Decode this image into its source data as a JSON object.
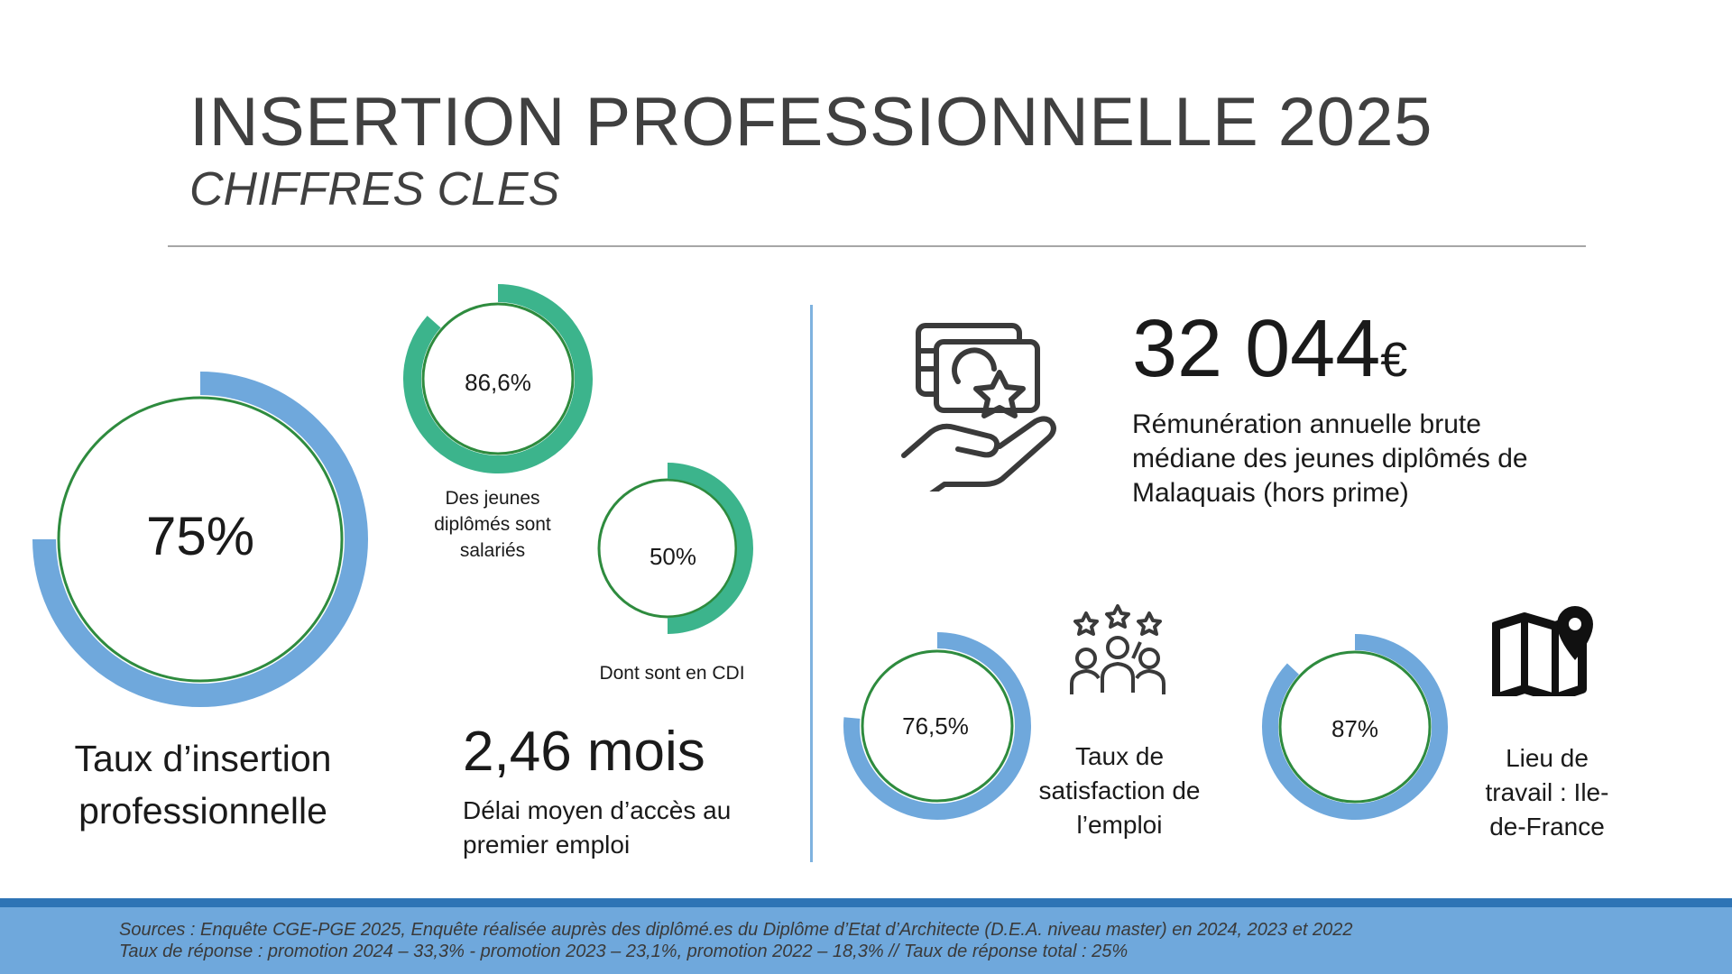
{
  "header": {
    "title": "INSERTION PROFESSIONNELLE 2025",
    "subtitle": "CHIFFRES CLES"
  },
  "colors": {
    "blue_ring": "#6fa8dc",
    "green_ring": "#3cb48c",
    "inner_ring": "#2e8b3e",
    "footer": "#6fa8dc",
    "footer_dark": "#2e74b5"
  },
  "left": {
    "insertion": {
      "value": "75%",
      "percent": 75,
      "label_line1": "Taux d’insertion",
      "label_line2": "professionnelle"
    },
    "salaries": {
      "value": "86,6%",
      "percent": 86.6,
      "label_line1": "Des jeunes",
      "label_line2": "diplômés sont",
      "label_line3": "salariés"
    },
    "cdi": {
      "value": "50%",
      "percent": 50,
      "label": "Dont sont en CDI"
    },
    "delai": {
      "value": "2,46 mois",
      "label_line1": "Délai moyen d’accès au",
      "label_line2": "premier emploi"
    }
  },
  "right": {
    "salary": {
      "value": "32 044",
      "currency": "€",
      "icon": "money-hand-star-icon",
      "label_line1": "Rémunération annuelle brute",
      "label_line2": "médiane des jeunes diplômés de",
      "label_line3": "Malaquais (hors prime)"
    },
    "satisfaction": {
      "value": "76,5%",
      "percent": 76.5,
      "icon": "team-stars-icon",
      "label_line1": "Taux de",
      "label_line2": "satisfaction de",
      "label_line3": "l’emploi"
    },
    "lieu": {
      "value": "87%",
      "percent": 87,
      "icon": "map-pin-icon",
      "label_line1": "Lieu de",
      "label_line2": "travail : Ile-",
      "label_line3": "de-France"
    }
  },
  "footer": {
    "line1": "Sources : Enquête CGE-PGE 2025, Enquête réalisée auprès des diplômé.es du Diplôme d’Etat d’Architecte (D.E.A. niveau master) en 2024, 2023 et 2022",
    "line2": "Taux de réponse : promotion 2024 – 33,3% - promotion 2023 – 23,1%, promotion 2022 – 18,3% // Taux de réponse total : 25%"
  }
}
